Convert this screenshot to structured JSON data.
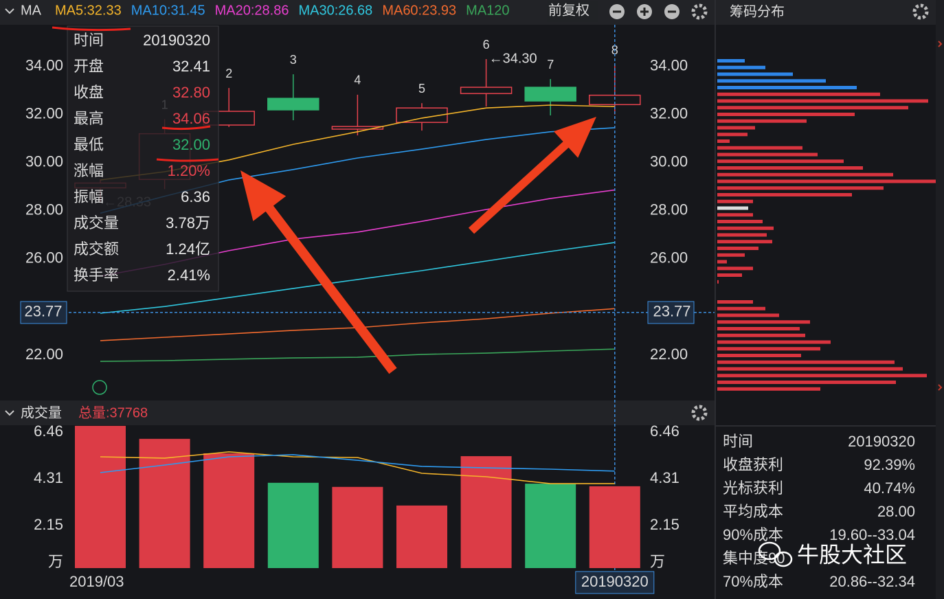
{
  "chart_data": [
    {
      "type": "candlestick",
      "header": "MA",
      "adjust_label": "前复权",
      "categories": [
        "2019/03",
        null,
        null,
        null,
        null,
        null,
        null,
        null,
        "20190320"
      ],
      "open": [
        28.95,
        29.3,
        31.56,
        32.67,
        31.39,
        31.67,
        32.87,
        33.13,
        32.41
      ],
      "close": [
        29.15,
        31.2,
        32.13,
        32.19,
        31.5,
        32.27,
        33.13,
        32.56,
        32.8
      ],
      "high": [
        29.3,
        31.8,
        33.1,
        33.67,
        32.82,
        32.47,
        34.3,
        33.47,
        34.06
      ],
      "low": [
        28.33,
        28.9,
        31.48,
        31.76,
        31.13,
        31.33,
        32.33,
        31.96,
        32.0
      ],
      "up_color": "#e8434e",
      "down_color": "#2fb36e",
      "candle_labels": [
        null,
        "1",
        "2",
        "3",
        "4",
        "5",
        "6",
        "7",
        "8"
      ],
      "high_label": "←34.30",
      "low_label": "←28.33",
      "series": [
        {
          "name": "MA5:32.33",
          "color": "#f5b52a",
          "values": [
            29.28,
            29.62,
            30.11,
            30.76,
            31.28,
            31.85,
            32.27,
            32.39,
            32.33
          ]
        },
        {
          "name": "MA10:31.45",
          "color": "#2e9bf0",
          "values": [
            27.9,
            28.6,
            29.28,
            29.71,
            30.19,
            30.56,
            30.96,
            31.28,
            31.45
          ]
        },
        {
          "name": "MA20:28.86",
          "color": "#e83fcf",
          "values": [
            25.28,
            25.77,
            26.34,
            26.82,
            27.11,
            27.56,
            28.05,
            28.51,
            28.86
          ]
        },
        {
          "name": "MA30:26.68",
          "color": "#30c8e0",
          "values": [
            23.74,
            24.02,
            24.39,
            24.77,
            25.14,
            25.51,
            25.91,
            26.31,
            26.68
          ]
        },
        {
          "name": "MA60:23.93",
          "color": "#f26a2e",
          "values": [
            22.6,
            22.74,
            22.88,
            23.03,
            23.14,
            23.34,
            23.51,
            23.74,
            23.93
          ]
        },
        {
          "name": "MA120",
          "color": "#3aa65a",
          "values": [
            21.74,
            21.77,
            21.83,
            21.88,
            21.91,
            22.03,
            22.08,
            22.17,
            22.25
          ]
        }
      ],
      "ylim": [
        20.2,
        35.9
      ],
      "yticks": [
        {
          "value": 34,
          "label": "34.00"
        },
        {
          "value": 32,
          "label": "32.00"
        },
        {
          "value": 30,
          "label": "30.00"
        },
        {
          "value": 28,
          "label": "28.00"
        },
        {
          "value": 26,
          "label": "26.00"
        },
        {
          "value": 22,
          "label": "22.00"
        }
      ],
      "cursor_value": 23.77,
      "grid": false
    },
    {
      "type": "bar",
      "title": "成交量",
      "total_label": "总量:37768",
      "values": [
        6.57,
        5.97,
        5.3,
        3.94,
        3.75,
        2.89,
        5.17,
        3.9,
        3.78
      ],
      "colors": [
        "#dc3c46",
        "#dc3c46",
        "#dc3c46",
        "#2fb36e",
        "#dc3c46",
        "#dc3c46",
        "#dc3c46",
        "#2fb36e",
        "#dc3c46"
      ],
      "series": [
        {
          "color": "#f5b52a",
          "values": [
            5.14,
            5.08,
            5.37,
            5.14,
            5.11,
            4.38,
            4.22,
            3.9,
            3.9
          ]
        },
        {
          "color": "#2e9bf0",
          "values": [
            4.41,
            4.76,
            5.14,
            5.24,
            4.98,
            4.7,
            4.63,
            4.57,
            4.48
          ]
        }
      ],
      "ylim": [
        0,
        6.6
      ],
      "yticks": [
        6.46,
        4.31,
        2.15,
        {
          "value": 0,
          "label": "万"
        }
      ]
    },
    {
      "type": "barh",
      "title": "筹码分布",
      "values": [
        40,
        70,
        110,
        158,
        203,
        237,
        307,
        278,
        200,
        130,
        55,
        44,
        18,
        124,
        146,
        184,
        212,
        256,
        318,
        242,
        196,
        52,
        45,
        52,
        66,
        82,
        72,
        80,
        60,
        40,
        14,
        52,
        36,
        2,
        null,
        null,
        52,
        70,
        90,
        135,
        120,
        128,
        165,
        150,
        122,
        258,
        270,
        305,
        260,
        150
      ],
      "colors": [
        "#2e86e8",
        "#2e86e8",
        "#2e86e8",
        "#2e86e8",
        "#2e86e8",
        "#d9343f",
        "#d9343f",
        "#d9343f",
        "#d9343f",
        "#d9343f",
        "#d9343f",
        "#d9343f",
        "#d9343f",
        "#d9343f",
        "#d9343f",
        "#d9343f",
        "#d9343f",
        "#d9343f",
        "#d9343f",
        "#d9343f",
        "#d9343f",
        "#d9343f",
        "#dddddd",
        "#d9343f",
        "#d9343f",
        "#d9343f",
        "#d9343f",
        "#d9343f",
        "#d9343f",
        "#d9343f",
        "#d9343f",
        "#d9343f",
        "#d9343f",
        "#d9343f",
        null,
        null,
        "#d9343f",
        "#d9343f",
        "#d9343f",
        "#d9343f",
        "#d9343f",
        "#d9343f",
        "#d9343f",
        "#d9343f",
        "#d9343f",
        "#d9343f",
        "#d9343f",
        "#d9343f",
        "#d9343f",
        "#d9343f"
      ],
      "xlim": [
        0,
        318
      ]
    }
  ],
  "tooltip": {
    "rows": [
      {
        "label": "时间",
        "value": "20190320",
        "color": "#e8e8e8"
      },
      {
        "label": "开盘",
        "value": "32.41",
        "color": "#e8e8e8"
      },
      {
        "label": "收盘",
        "value": "32.80",
        "color": "#e8434e"
      },
      {
        "label": "最高",
        "value": "34.06",
        "color": "#e8434e"
      },
      {
        "label": "最低",
        "value": "32.00",
        "color": "#2fb36e"
      },
      {
        "label": "涨幅",
        "value": "1.20%",
        "color": "#e8434e"
      },
      {
        "label": "振幅",
        "value": "6.36",
        "color": "#e8e8e8"
      },
      {
        "label": "成交量",
        "value": "3.78万",
        "color": "#e8e8e8"
      },
      {
        "label": "成交额",
        "value": "1.24亿",
        "color": "#e8e8e8"
      },
      {
        "label": "换手率",
        "value": "2.41%",
        "color": "#e8e8e8"
      }
    ]
  },
  "chip_info": {
    "rows": [
      {
        "label": "时间",
        "value": "20190320"
      },
      {
        "label": "收盘获利",
        "value": "92.39%"
      },
      {
        "label": "光标获利",
        "value": "40.74%"
      },
      {
        "label": "平均成本",
        "value": "28.00"
      },
      {
        "label": "90%成本",
        "value": "19.60--33.04"
      },
      {
        "label": "集中度90"
      },
      {
        "label": "70%成本",
        "value": "20.86--32.34"
      }
    ]
  },
  "watermark": "牛股大社区"
}
